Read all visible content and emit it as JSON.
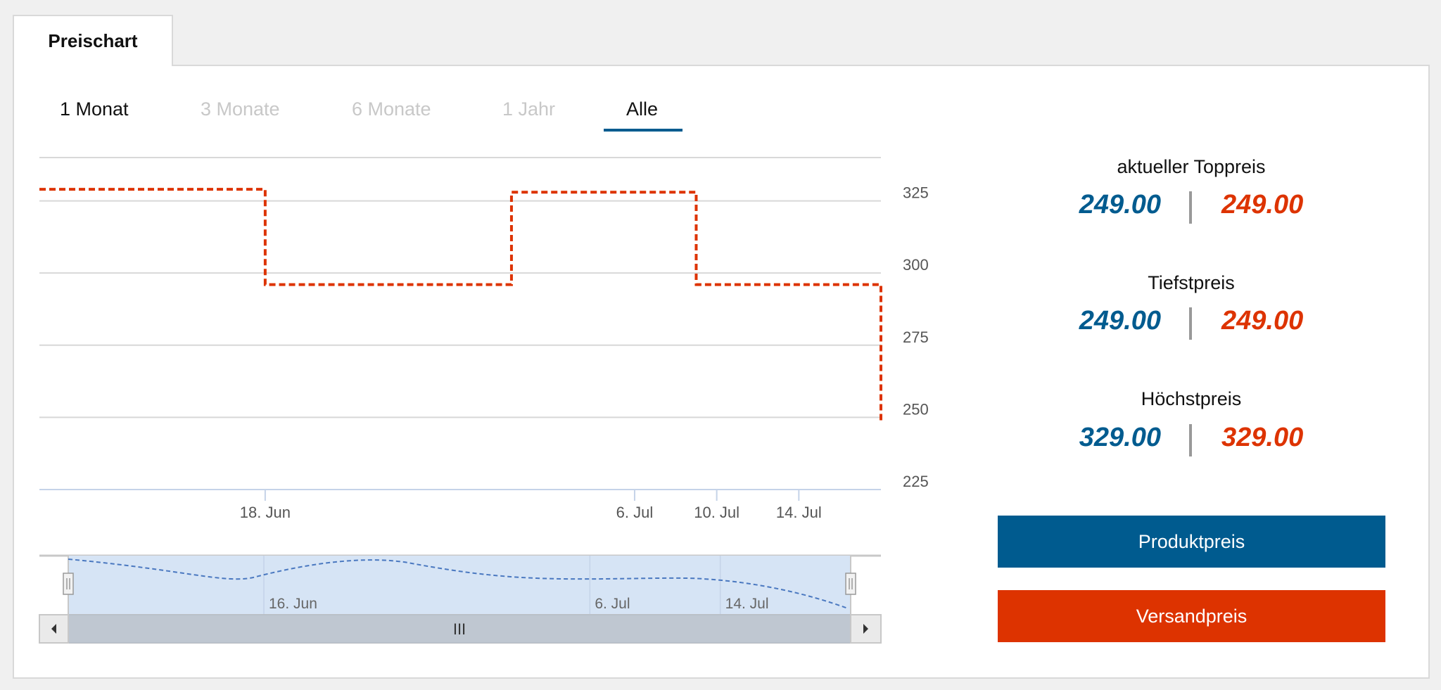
{
  "tab": {
    "label": "Preischart"
  },
  "ranges": {
    "items": [
      "1 Monat",
      "3 Monate",
      "6 Monate",
      "1 Jahr",
      "Alle"
    ],
    "selected": "Alle"
  },
  "stats": {
    "top": {
      "label": "aktueller Toppreis",
      "product": "249.00",
      "shipping": "249.00"
    },
    "low": {
      "label": "Tiefstpreis",
      "product": "249.00",
      "shipping": "249.00"
    },
    "high": {
      "label": "Höchstpreis",
      "product": "329.00",
      "shipping": "329.00"
    }
  },
  "buttons": {
    "product": "Produktpreis",
    "shipping": "Versandpreis"
  },
  "colors": {
    "product": "#005b8f",
    "shipping": "#dd3300",
    "navigator": "#d6e4f5"
  },
  "chart_data": {
    "type": "line",
    "step": true,
    "series": [
      {
        "points": [
          {
            "x": "2024-06-07",
            "y": 329
          },
          {
            "x": "2024-06-18",
            "y": 296
          },
          {
            "x": "2024-06-30",
            "y": 328
          },
          {
            "x": "2024-07-09",
            "y": 296
          },
          {
            "x": "2024-07-18",
            "y": 296
          },
          {
            "x": "2024-07-18",
            "y": 249
          }
        ]
      }
    ],
    "x_range": [
      "2024-06-07",
      "2024-07-18"
    ],
    "ylim": [
      225,
      340
    ],
    "y_ticks": [
      "325",
      "300",
      "275",
      "250",
      "225"
    ],
    "x_ticks": [
      {
        "x": "2024-06-18",
        "label": "18. Jun"
      },
      {
        "x": "2024-07-06",
        "label": "6. Jul"
      },
      {
        "x": "2024-07-10",
        "label": "10. Jul"
      },
      {
        "x": "2024-07-14",
        "label": "14. Jul"
      }
    ],
    "grid": true,
    "navigator": {
      "ticks": [
        {
          "x": "2024-06-16",
          "label": "16. Jun"
        },
        {
          "x": "2024-07-06",
          "label": "6. Jul"
        },
        {
          "x": "2024-07-14",
          "label": "14. Jul"
        }
      ],
      "scroll_label": "III"
    }
  }
}
